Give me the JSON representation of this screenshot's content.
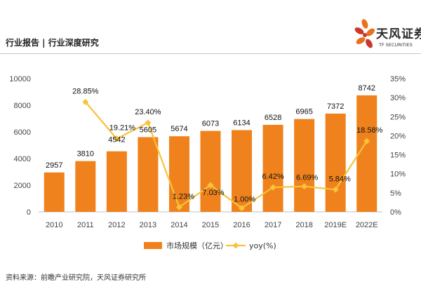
{
  "header": {
    "title": "行业报告 | 行业深度研究",
    "brand_name": "天风证券",
    "brand_sub": "TF SECURITIES"
  },
  "source": "资料来源：前瞻产业研究院，天风证券研究所",
  "colors": {
    "bar": "#F0821E",
    "line": "#F7C33A",
    "logo_orange": "#E8711C",
    "logo_red": "#C8382B"
  },
  "chart_data": {
    "type": "bar",
    "categories": [
      "2010",
      "2011",
      "2012",
      "2013",
      "2014",
      "2015",
      "2016",
      "2017",
      "2018",
      "2019E",
      "2022E"
    ],
    "series": [
      {
        "name": "市场规模（亿元）",
        "type": "bar",
        "axis": "left",
        "values": [
          2957,
          3810,
          4542,
          5605,
          5674,
          6073,
          6134,
          6528,
          6965,
          7372,
          8742
        ],
        "labels": [
          "2957",
          "3810",
          "4542",
          "5605",
          "5674",
          "6073",
          "6134",
          "6528",
          "6965",
          "7372",
          "8742"
        ]
      },
      {
        "name": "yoy(%)",
        "type": "line",
        "axis": "right",
        "values": [
          null,
          28.85,
          19.21,
          23.4,
          1.23,
          7.03,
          1.0,
          6.42,
          6.69,
          5.84,
          18.58
        ],
        "labels": [
          "",
          "28.85%",
          "19.21%",
          "23.40%",
          "1.23%",
          "7.03%",
          "1.00%",
          "6.42%",
          "6.69%",
          "5.84%",
          "18.58%"
        ]
      }
    ],
    "y_left": {
      "min": 0,
      "max": 10000,
      "ticks": [
        "0",
        "2000",
        "4000",
        "6000",
        "8000",
        "10000"
      ]
    },
    "y_right": {
      "min": 0,
      "max": 35,
      "ticks": [
        "0%",
        "5%",
        "10%",
        "15%",
        "20%",
        "25%",
        "30%",
        "35%"
      ]
    },
    "grid": false,
    "legend_position": "bottom"
  }
}
